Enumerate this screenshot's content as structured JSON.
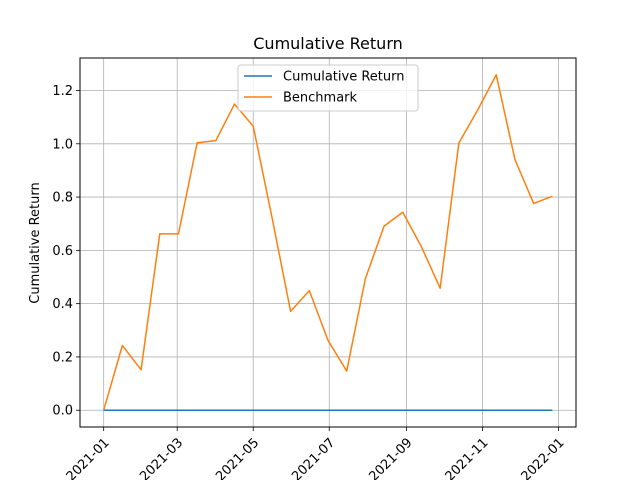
{
  "chart_data": {
    "type": "line",
    "title": "Cumulative Return",
    "xlabel": "",
    "ylabel": "Cumulative Return",
    "x": [
      "2021-01-01",
      "2021-01-16",
      "2021-01-31",
      "2021-02-15",
      "2021-03-02",
      "2021-03-17",
      "2021-04-01",
      "2021-04-16",
      "2021-05-01",
      "2021-05-16",
      "2021-05-31",
      "2021-06-15",
      "2021-06-30",
      "2021-07-15",
      "2021-07-30",
      "2021-08-14",
      "2021-08-29",
      "2021-09-13",
      "2021-09-28",
      "2021-10-13",
      "2021-10-28",
      "2021-11-12",
      "2021-11-27",
      "2021-12-12",
      "2021-12-27"
    ],
    "series": [
      {
        "name": "Cumulative Return",
        "color": "#1f77b4",
        "values": [
          0,
          0,
          0,
          0,
          0,
          0,
          0,
          0,
          0,
          0,
          0,
          0,
          0,
          0,
          0,
          0,
          0,
          0,
          0,
          0,
          0,
          0,
          0,
          0,
          0
        ]
      },
      {
        "name": "Benchmark",
        "color": "#ff7f0e",
        "values": [
          0.0,
          0.243,
          0.152,
          0.662,
          0.662,
          1.004,
          1.012,
          1.149,
          1.066,
          0.725,
          0.371,
          0.449,
          0.262,
          0.147,
          0.494,
          0.691,
          0.743,
          0.613,
          0.458,
          1.003,
          1.126,
          1.259,
          0.941,
          0.776,
          0.803
        ]
      }
    ],
    "xlim": [
      "2020-12-13",
      "2022-01-15"
    ],
    "ylim": [
      -0.063,
      1.322
    ],
    "x_ticks": [
      {
        "date": "2021-01-01",
        "label": "2021-01"
      },
      {
        "date": "2021-03-01",
        "label": "2021-03"
      },
      {
        "date": "2021-05-01",
        "label": "2021-05"
      },
      {
        "date": "2021-07-01",
        "label": "2021-07"
      },
      {
        "date": "2021-09-01",
        "label": "2021-09"
      },
      {
        "date": "2021-11-01",
        "label": "2021-11"
      },
      {
        "date": "2022-01-01",
        "label": "2022-01"
      }
    ],
    "y_ticks": [
      0.0,
      0.2,
      0.4,
      0.6,
      0.8,
      1.0,
      1.2
    ],
    "y_tick_labels": [
      "0.0",
      "0.2",
      "0.4",
      "0.6",
      "0.8",
      "1.0",
      "1.2"
    ],
    "grid": true,
    "legend_position": "top-center"
  }
}
